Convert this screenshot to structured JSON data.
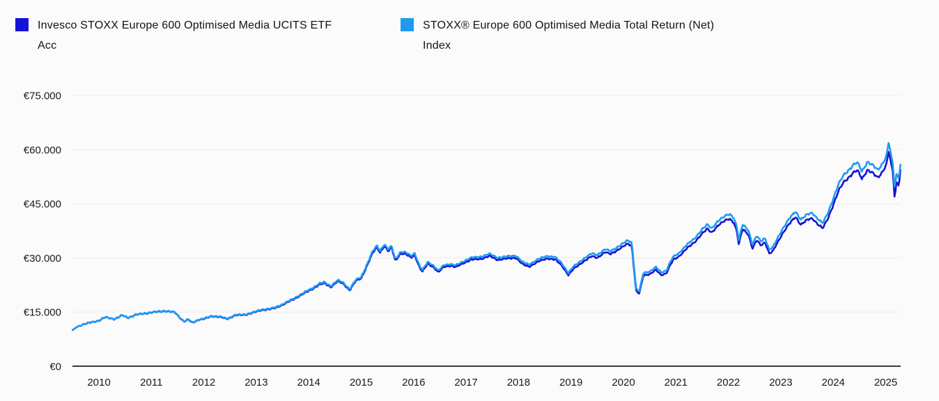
{
  "legend": {
    "items": [
      {
        "label": "Invesco STOXX Europe 600 Optimised Media UCITS ETF Acc",
        "lines": [
          "Invesco STOXX Europe 600 Optimised Media UCITS ETF",
          "Acc"
        ],
        "color": "#1514D6"
      },
      {
        "label": "STOXX® Europe 600 Optimised Media Total Return (Net) Index",
        "lines": [
          "STOXX® Europe 600 Optimised Media Total Return (Net)",
          "Index"
        ],
        "color": "#1E9BF0"
      }
    ]
  },
  "colors": {
    "background": "#FBFBFB",
    "gridline": "#ECECEC",
    "axis_line": "#3C3C3C",
    "text": "#1A1A1A",
    "fund_line": "#1514D6",
    "index_line": "#1E9BF0"
  },
  "chart_data": {
    "type": "line",
    "title": "",
    "xlabel": "",
    "ylabel": "",
    "currency": "EUR",
    "grid": "horizontal",
    "legend_position": "top",
    "xlim": [
      2009.5,
      2025.33
    ],
    "ylim": [
      0,
      75000
    ],
    "y_ticks": [
      {
        "value": 0,
        "label": "€0"
      },
      {
        "value": 15000,
        "label": "€15.000"
      },
      {
        "value": 30000,
        "label": "€30.000"
      },
      {
        "value": 45000,
        "label": "€45.000"
      },
      {
        "value": 60000,
        "label": "€60.000"
      },
      {
        "value": 75000,
        "label": "€75.000"
      }
    ],
    "x_ticks": [
      {
        "value": 2010,
        "label": "2010"
      },
      {
        "value": 2011,
        "label": "2011"
      },
      {
        "value": 2012,
        "label": "2012"
      },
      {
        "value": 2013,
        "label": "2013"
      },
      {
        "value": 2014,
        "label": "2014"
      },
      {
        "value": 2015,
        "label": "2015"
      },
      {
        "value": 2016,
        "label": "2016"
      },
      {
        "value": 2017,
        "label": "2017"
      },
      {
        "value": 2018,
        "label": "2018"
      },
      {
        "value": 2019,
        "label": "2019"
      },
      {
        "value": 2020,
        "label": "2020"
      },
      {
        "value": 2021,
        "label": "2021"
      },
      {
        "value": 2022,
        "label": "2022"
      },
      {
        "value": 2023,
        "label": "2023"
      },
      {
        "value": 2024,
        "label": "2024"
      },
      {
        "value": 2025,
        "label": "2025"
      }
    ],
    "x": [
      2009.5,
      2009.58,
      2009.7,
      2009.85,
      2010.0,
      2010.12,
      2010.3,
      2010.45,
      2010.55,
      2010.7,
      2010.9,
      2011.05,
      2011.25,
      2011.45,
      2011.58,
      2011.63,
      2011.7,
      2011.78,
      2011.9,
      2012.0,
      2012.15,
      2012.3,
      2012.45,
      2012.6,
      2012.8,
      2012.95,
      2013.1,
      2013.25,
      2013.35,
      2013.5,
      2013.7,
      2013.9,
      2014.05,
      2014.2,
      2014.3,
      2014.42,
      2014.55,
      2014.65,
      2014.78,
      2014.9,
      2015.0,
      2015.1,
      2015.22,
      2015.3,
      2015.36,
      2015.44,
      2015.52,
      2015.58,
      2015.65,
      2015.75,
      2015.85,
      2015.95,
      2016.02,
      2016.12,
      2016.17,
      2016.27,
      2016.38,
      2016.47,
      2016.58,
      2016.7,
      2016.8,
      2016.95,
      2017.1,
      2017.3,
      2017.45,
      2017.6,
      2017.8,
      2017.95,
      2018.08,
      2018.2,
      2018.38,
      2018.55,
      2018.7,
      2018.82,
      2018.95,
      2019.05,
      2019.25,
      2019.4,
      2019.5,
      2019.65,
      2019.75,
      2019.95,
      2020.08,
      2020.16,
      2020.24,
      2020.3,
      2020.38,
      2020.5,
      2020.62,
      2020.72,
      2020.82,
      2020.88,
      2020.95,
      2021.05,
      2021.2,
      2021.35,
      2021.5,
      2021.6,
      2021.68,
      2021.8,
      2021.95,
      2022.02,
      2022.1,
      2022.16,
      2022.2,
      2022.27,
      2022.38,
      2022.46,
      2022.54,
      2022.62,
      2022.7,
      2022.78,
      2022.85,
      2022.95,
      2023.05,
      2023.15,
      2023.28,
      2023.38,
      2023.5,
      2023.6,
      2023.72,
      2023.8,
      2023.9,
      2024.0,
      2024.1,
      2024.2,
      2024.3,
      2024.38,
      2024.46,
      2024.55,
      2024.65,
      2024.75,
      2024.85,
      2024.95,
      2025.02,
      2025.06,
      2025.1,
      2025.14,
      2025.17,
      2025.21,
      2025.25,
      2025.28
    ],
    "series": [
      {
        "name": "Invesco STOXX Europe 600 Optimised Media UCITS ETF Acc",
        "color": "#1514D6",
        "values": [
          10000,
          10890,
          11580,
          12170,
          12680,
          13570,
          13070,
          14060,
          13360,
          14160,
          14650,
          14940,
          15330,
          14930,
          12930,
          12330,
          12930,
          12030,
          12830,
          13010,
          13810,
          13610,
          13110,
          14100,
          14290,
          14890,
          15560,
          15750,
          16040,
          16930,
          18410,
          20090,
          21250,
          22630,
          23020,
          21930,
          23500,
          22910,
          21030,
          23600,
          24260,
          27410,
          31340,
          32920,
          31540,
          33310,
          31830,
          32910,
          29260,
          31230,
          31030,
          30140,
          30780,
          27040,
          26160,
          28420,
          27330,
          25960,
          27530,
          27820,
          27430,
          28600,
          29520,
          29810,
          30490,
          29410,
          29790,
          29990,
          28170,
          27580,
          29040,
          29920,
          29530,
          27960,
          25220,
          26930,
          29060,
          30420,
          30030,
          31580,
          31090,
          32740,
          33960,
          33370,
          20900,
          20030,
          25080,
          25470,
          26630,
          25160,
          25740,
          27680,
          29420,
          30280,
          32600,
          34240,
          36850,
          38010,
          36940,
          38970,
          40320,
          40760,
          39880,
          37360,
          33680,
          37930,
          36570,
          32600,
          34920,
          33460,
          34420,
          31230,
          31900,
          34600,
          37180,
          39190,
          41300,
          39170,
          40410,
          40880,
          39140,
          38170,
          40950,
          44780,
          48620,
          51010,
          52440,
          53670,
          54240,
          51820,
          54390,
          53420,
          52060,
          54050,
          56190,
          59840,
          55900,
          53400,
          46300,
          51300,
          50100,
          54300
        ]
      },
      {
        "name": "STOXX® Europe 600 Optimised Media Total Return (Net) Index",
        "color": "#1E9BF0",
        "values": [
          10000,
          10900,
          11600,
          12200,
          12700,
          13600,
          13100,
          14100,
          13400,
          14200,
          14700,
          15000,
          15400,
          15000,
          13000,
          12400,
          13000,
          12100,
          12900,
          13100,
          13900,
          13700,
          13200,
          14200,
          14400,
          15000,
          15700,
          15900,
          16200,
          17100,
          18600,
          20300,
          21500,
          22900,
          23300,
          22200,
          23800,
          23200,
          21300,
          23900,
          24600,
          27800,
          31800,
          33400,
          32000,
          33800,
          32300,
          33400,
          29700,
          31700,
          31500,
          30600,
          31300,
          27500,
          26600,
          28900,
          27800,
          26400,
          28000,
          28300,
          27900,
          29100,
          30100,
          30400,
          31100,
          30000,
          30400,
          30600,
          28800,
          28200,
          29700,
          30600,
          30200,
          28600,
          25800,
          27600,
          29800,
          31200,
          30800,
          32400,
          31900,
          33600,
          34900,
          34300,
          21500,
          20600,
          25800,
          26200,
          27400,
          25900,
          26500,
          28500,
          30300,
          31200,
          33600,
          35300,
          38000,
          39200,
          38100,
          40200,
          41600,
          42100,
          41200,
          38600,
          34800,
          39200,
          37800,
          33700,
          36100,
          34600,
          35600,
          32300,
          33000,
          35800,
          38500,
          40600,
          42800,
          40600,
          41900,
          42400,
          40600,
          39600,
          42500,
          46500,
          50500,
          53000,
          54500,
          55800,
          56400,
          53900,
          56600,
          55600,
          54200,
          56300,
          58500,
          62300,
          58200,
          55600,
          49200,
          53500,
          52200,
          55800
        ]
      }
    ]
  }
}
